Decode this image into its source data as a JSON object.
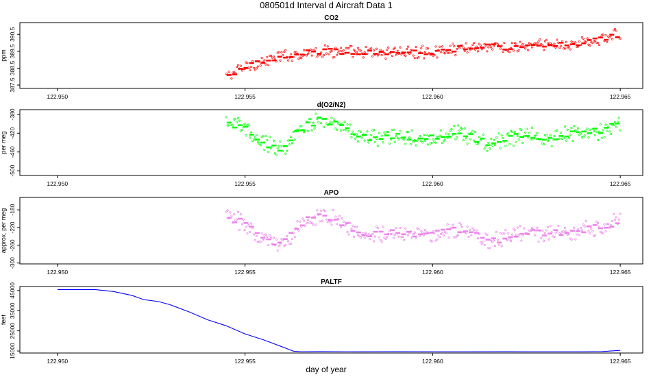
{
  "title": "080501d   Interval d Aircraft Data 1",
  "xlabel": "day of year",
  "chart_data": [
    {
      "type": "scatter",
      "title": "CO2",
      "ylabel": "ppm",
      "xlim": [
        122.949,
        122.9656
      ],
      "ylim": [
        387.3,
        391.2
      ],
      "x_ticks": [
        "122.950",
        "122.955",
        "122.960",
        "122.965"
      ],
      "y_ticks": [
        "387.5",
        "388.5",
        "389.5",
        "390.5"
      ],
      "color": "#ff0000",
      "series": [
        {
          "x": [
            122.9545,
            122.955,
            122.9555,
            122.956,
            122.9565,
            122.957,
            122.9575,
            122.958,
            122.9585,
            122.959,
            122.9595,
            122.96,
            122.9605,
            122.961,
            122.9615,
            122.962,
            122.9625,
            122.963,
            122.9635,
            122.964,
            122.9645,
            122.965
          ],
          "y": [
            388.0,
            388.6,
            388.9,
            389.2,
            389.4,
            389.5,
            389.5,
            389.4,
            389.4,
            389.5,
            389.4,
            389.5,
            389.6,
            389.8,
            389.8,
            389.7,
            389.8,
            389.9,
            389.9,
            390.0,
            390.2,
            390.5
          ]
        }
      ]
    },
    {
      "type": "scatter",
      "title": "d(O2/N2)",
      "ylabel": "per meg",
      "xlim": [
        122.949,
        122.9656
      ],
      "ylim": [
        -510,
        -370
      ],
      "x_ticks": [
        "122.950",
        "122.955",
        "122.960",
        "122.965"
      ],
      "y_ticks": [
        "-380",
        "-420",
        "-460",
        "-500"
      ],
      "color": "#00ff00",
      "series": [
        {
          "x": [
            122.9545,
            122.955,
            122.9555,
            122.956,
            122.9565,
            122.957,
            122.9575,
            122.958,
            122.9585,
            122.959,
            122.9595,
            122.96,
            122.9605,
            122.961,
            122.9615,
            122.962,
            122.9625,
            122.963,
            122.9635,
            122.964,
            122.9645,
            122.965
          ],
          "y": [
            -395,
            -410,
            -440,
            -455,
            -410,
            -390,
            -400,
            -425,
            -430,
            -425,
            -430,
            -430,
            -420,
            -425,
            -445,
            -430,
            -425,
            -430,
            -425,
            -420,
            -415,
            -400
          ]
        }
      ]
    },
    {
      "type": "scatter",
      "title": "APO",
      "ylabel": "approx. per meg",
      "xlim": [
        122.949,
        122.9656
      ],
      "ylim": [
        -302,
        -152
      ],
      "x_ticks": [
        "122.950",
        "122.955",
        "122.960",
        "122.965"
      ],
      "y_ticks": [
        "-180",
        "-220",
        "-260",
        "-300"
      ],
      "color": "#ee82ee",
      "series": [
        {
          "x": [
            122.9545,
            122.955,
            122.9555,
            122.956,
            122.9565,
            122.957,
            122.9575,
            122.958,
            122.9585,
            122.959,
            122.9595,
            122.96,
            122.9605,
            122.961,
            122.9615,
            122.962,
            122.9625,
            122.963,
            122.9635,
            122.964,
            122.9645,
            122.965
          ],
          "y": [
            -195,
            -210,
            -245,
            -260,
            -210,
            -190,
            -205,
            -230,
            -235,
            -230,
            -235,
            -235,
            -225,
            -230,
            -255,
            -240,
            -230,
            -235,
            -230,
            -225,
            -220,
            -205
          ]
        }
      ]
    },
    {
      "type": "line",
      "title": "PALTF",
      "ylabel": "feet",
      "xlim": [
        122.949,
        122.9656
      ],
      "ylim": [
        14000,
        47000
      ],
      "x_ticks": [
        "122.950",
        "122.955",
        "122.960",
        "122.965"
      ],
      "y_ticks": [
        "15000",
        "25000",
        "35000",
        "45000"
      ],
      "color": "#0000ff",
      "series": [
        {
          "x": [
            122.95,
            122.9505,
            122.951,
            122.9515,
            122.952,
            122.9523,
            122.9527,
            122.953,
            122.9535,
            122.954,
            122.9545,
            122.955,
            122.9555,
            122.956,
            122.9563,
            122.9565,
            122.957,
            122.958,
            122.959,
            122.96,
            122.961,
            122.962,
            122.963,
            122.964,
            122.9645,
            122.965
          ],
          "y": [
            45500,
            45500,
            45500,
            44500,
            42500,
            40500,
            39500,
            38000,
            34500,
            30500,
            27500,
            23500,
            20500,
            17000,
            14900,
            14600,
            14700,
            14600,
            14650,
            14600,
            14600,
            14650,
            14600,
            14600,
            14700,
            15300
          ]
        }
      ]
    }
  ]
}
